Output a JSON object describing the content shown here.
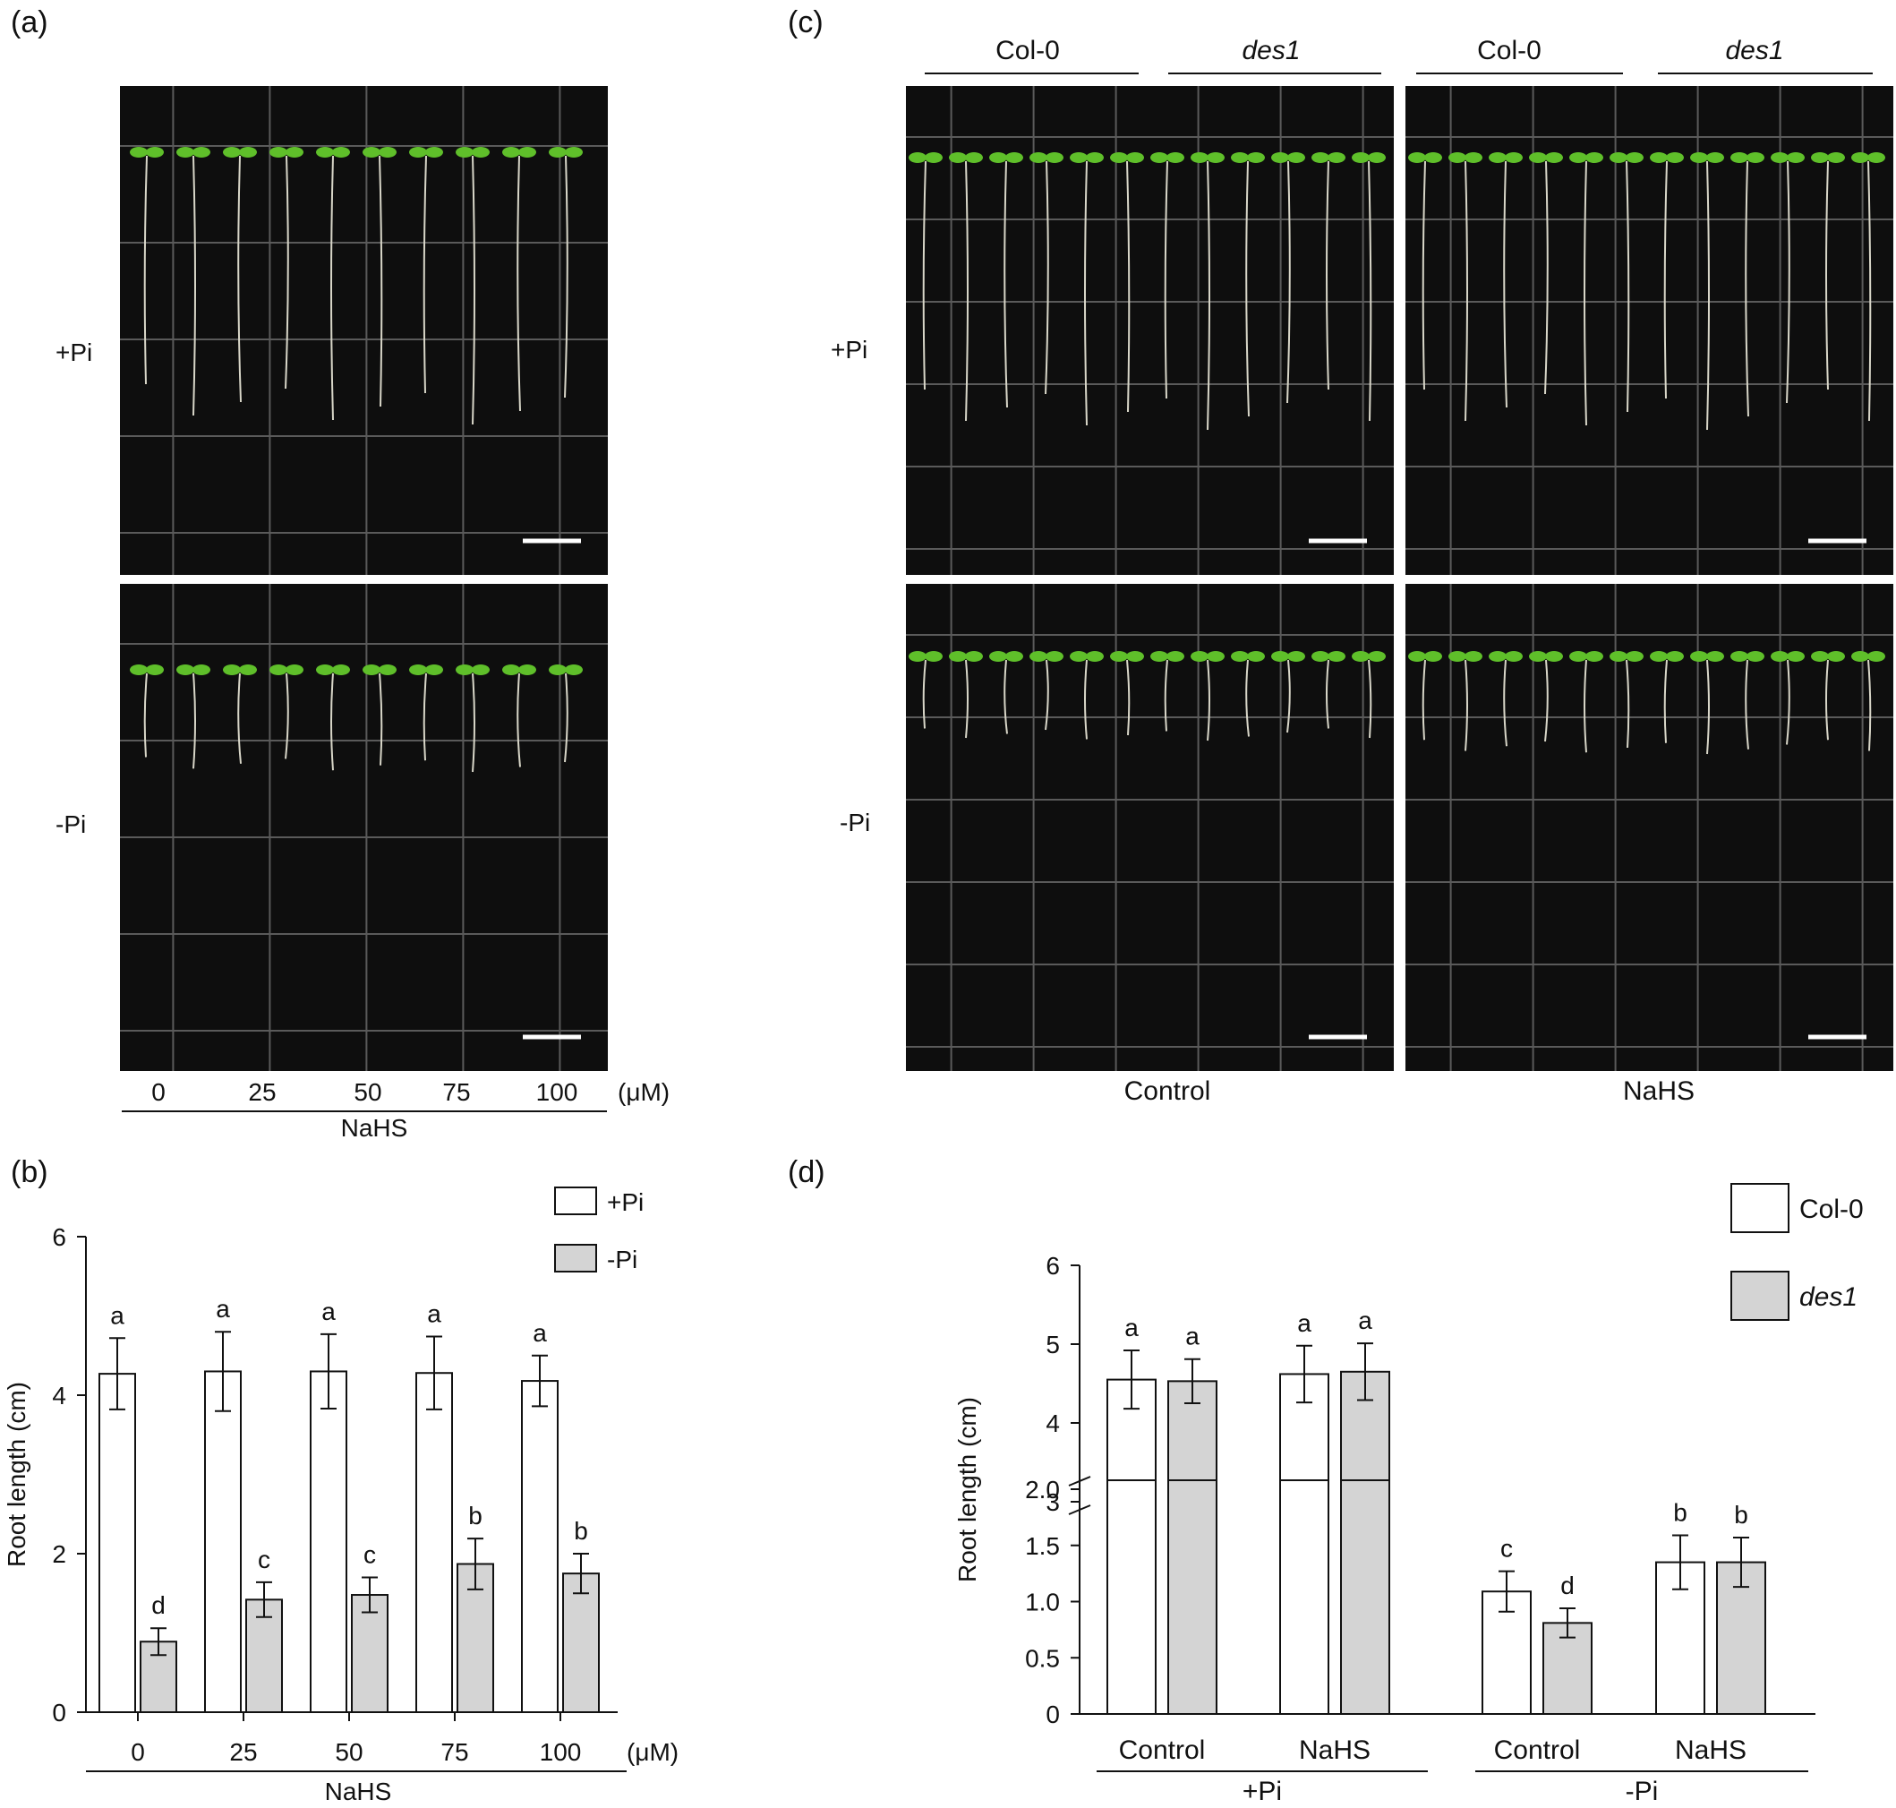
{
  "panels": {
    "a": {
      "label": "(a)",
      "row_labels": [
        "+Pi",
        "-Pi"
      ],
      "concentrations": [
        "0",
        "25",
        "50",
        "75",
        "100"
      ],
      "unit": "(μM)",
      "treatment": "NaHS"
    },
    "c": {
      "label": "(c)",
      "genotype_labels": [
        "Col-0",
        "des1",
        "Col-0",
        "des1"
      ],
      "row_labels": [
        "+Pi",
        "-Pi"
      ],
      "column_labels": [
        "Control",
        "NaHS"
      ]
    },
    "b": {
      "label": "(b)"
    },
    "d": {
      "label": "(d)"
    }
  },
  "colors": {
    "photo_background": "#0e0e0e",
    "grid_line": "#5a5a5a",
    "seedling_leaf": "#5fbf2a",
    "root": "#d8d6c8",
    "bar_plus_pi": "#ffffff",
    "bar_minus_pi": "#d4d4d4"
  },
  "chart_data": [
    {
      "id": "b",
      "type": "bar",
      "categories": [
        "0",
        "25",
        "50",
        "75",
        "100"
      ],
      "unit": "(μM)",
      "group_label": "NaHS",
      "ylabel": "Root length (cm)",
      "ylim": [
        0,
        6
      ],
      "yticks": [
        "0",
        "2",
        "4",
        "6"
      ],
      "legend": {
        "placement": "top-right",
        "entries": [
          "+Pi",
          "-Pi"
        ]
      },
      "series": [
        {
          "name": "+Pi",
          "values": [
            4.27,
            4.3,
            4.3,
            4.28,
            4.18
          ],
          "errors": [
            0.45,
            0.5,
            0.47,
            0.46,
            0.32
          ],
          "letters": [
            "a",
            "a",
            "a",
            "a",
            "a"
          ]
        },
        {
          "name": "-Pi",
          "values": [
            0.89,
            1.42,
            1.48,
            1.87,
            1.75
          ],
          "errors": [
            0.17,
            0.22,
            0.22,
            0.32,
            0.25
          ],
          "letters": [
            "d",
            "c",
            "c",
            "b",
            "b"
          ]
        }
      ]
    },
    {
      "id": "d",
      "type": "bar",
      "categories": [
        "Control",
        "NaHS",
        "Control",
        "NaHS"
      ],
      "groups": [
        "+Pi",
        "-Pi"
      ],
      "ylabel": "Root length (cm)",
      "axis_break": [
        2.0,
        3.0
      ],
      "yticks_lower": [
        "0",
        "0.5",
        "1.0",
        "1.5",
        "2.0"
      ],
      "yticks_upper": [
        "3",
        "4",
        "5",
        "6"
      ],
      "legend": {
        "placement": "top-right",
        "entries": [
          "Col-0",
          "des1"
        ]
      },
      "series": [
        {
          "name": "Col-0",
          "values": [
            4.55,
            4.62,
            1.09,
            1.35
          ],
          "errors": [
            0.37,
            0.36,
            0.18,
            0.24
          ],
          "letters": [
            "a",
            "a",
            "c",
            "b"
          ]
        },
        {
          "name": "des1",
          "values": [
            4.53,
            4.65,
            0.81,
            1.35
          ],
          "errors": [
            0.28,
            0.36,
            0.13,
            0.22
          ],
          "letters": [
            "a",
            "a",
            "d",
            "b"
          ]
        }
      ]
    }
  ]
}
